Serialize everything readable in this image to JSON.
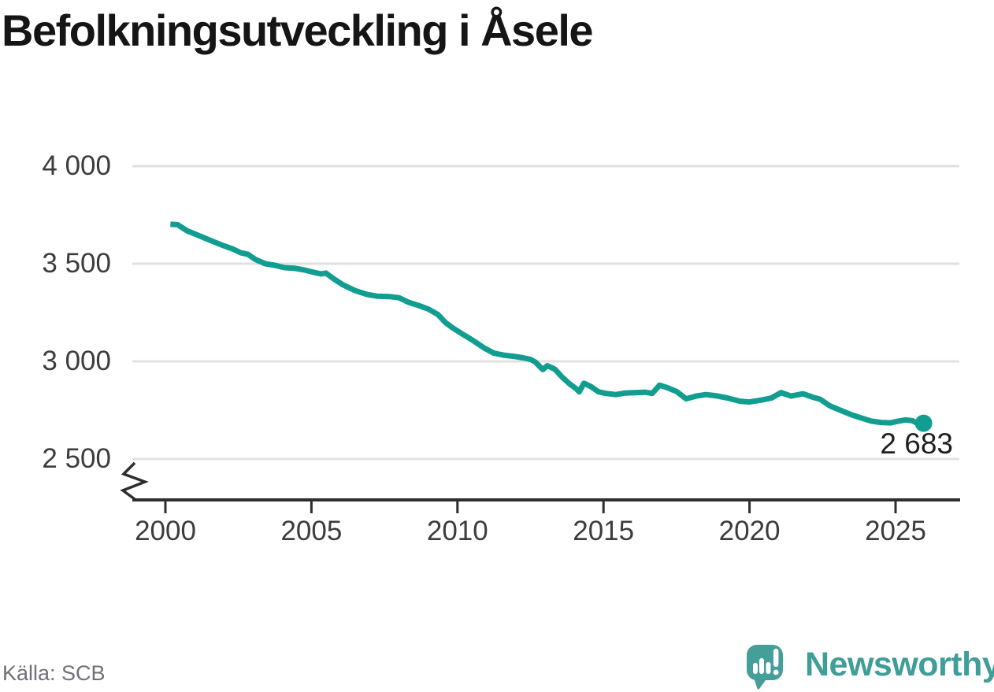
{
  "header": {
    "title": "Befolkningsutveckling i Åsele"
  },
  "chart_data": {
    "type": "line",
    "title": "Befolkningsutveckling i Åsele",
    "xlabel": "",
    "ylabel": "",
    "grid": "horizontal",
    "legend": "none",
    "axis_break": true,
    "x_ticks": [
      2000,
      2005,
      2010,
      2015,
      2020,
      2025
    ],
    "y_ticks": [
      {
        "value": 4000,
        "label": "4 000"
      },
      {
        "value": 3500,
        "label": "3 500"
      },
      {
        "value": 3000,
        "label": "3 000"
      },
      {
        "value": 2500,
        "label": "2 500"
      }
    ],
    "xlim": [
      1998.9,
      2027.2
    ],
    "ylim_display": [
      2500,
      4000
    ],
    "latest_point": {
      "x": 2025.96,
      "value": 2683,
      "label": "2 683"
    },
    "series": [
      {
        "name": "Befolkning i Åsele",
        "points": [
          [
            2000.17,
            3702
          ],
          [
            2000.42,
            3700
          ],
          [
            2000.75,
            3668
          ],
          [
            2001.08,
            3648
          ],
          [
            2001.5,
            3622
          ],
          [
            2002.0,
            3592
          ],
          [
            2002.33,
            3574
          ],
          [
            2002.58,
            3556
          ],
          [
            2002.83,
            3548
          ],
          [
            2003.08,
            3522
          ],
          [
            2003.42,
            3500
          ],
          [
            2003.75,
            3492
          ],
          [
            2004.08,
            3480
          ],
          [
            2004.42,
            3477
          ],
          [
            2004.75,
            3468
          ],
          [
            2005.08,
            3456
          ],
          [
            2005.33,
            3448
          ],
          [
            2005.5,
            3452
          ],
          [
            2005.75,
            3424
          ],
          [
            2006.08,
            3392
          ],
          [
            2006.5,
            3362
          ],
          [
            2006.92,
            3342
          ],
          [
            2007.25,
            3334
          ],
          [
            2007.67,
            3332
          ],
          [
            2008.0,
            3326
          ],
          [
            2008.33,
            3302
          ],
          [
            2008.67,
            3286
          ],
          [
            2009.0,
            3268
          ],
          [
            2009.33,
            3240
          ],
          [
            2009.58,
            3200
          ],
          [
            2009.83,
            3172
          ],
          [
            2010.17,
            3140
          ],
          [
            2010.5,
            3110
          ],
          [
            2010.92,
            3068
          ],
          [
            2011.25,
            3042
          ],
          [
            2011.58,
            3032
          ],
          [
            2011.92,
            3026
          ],
          [
            2012.25,
            3018
          ],
          [
            2012.5,
            3010
          ],
          [
            2012.67,
            2996
          ],
          [
            2012.92,
            2958
          ],
          [
            2013.08,
            2978
          ],
          [
            2013.33,
            2960
          ],
          [
            2013.58,
            2920
          ],
          [
            2013.83,
            2886
          ],
          [
            2014.08,
            2858
          ],
          [
            2014.17,
            2844
          ],
          [
            2014.33,
            2888
          ],
          [
            2014.58,
            2870
          ],
          [
            2014.83,
            2844
          ],
          [
            2015.08,
            2836
          ],
          [
            2015.42,
            2830
          ],
          [
            2015.75,
            2838
          ],
          [
            2016.08,
            2840
          ],
          [
            2016.42,
            2842
          ],
          [
            2016.67,
            2836
          ],
          [
            2016.92,
            2878
          ],
          [
            2017.17,
            2866
          ],
          [
            2017.5,
            2846
          ],
          [
            2017.83,
            2808
          ],
          [
            2018.17,
            2822
          ],
          [
            2018.5,
            2830
          ],
          [
            2018.83,
            2824
          ],
          [
            2019.25,
            2812
          ],
          [
            2019.67,
            2796
          ],
          [
            2020.0,
            2792
          ],
          [
            2020.42,
            2802
          ],
          [
            2020.75,
            2812
          ],
          [
            2021.08,
            2840
          ],
          [
            2021.42,
            2822
          ],
          [
            2021.83,
            2834
          ],
          [
            2022.17,
            2816
          ],
          [
            2022.42,
            2806
          ],
          [
            2022.75,
            2772
          ],
          [
            2023.17,
            2746
          ],
          [
            2023.5,
            2726
          ],
          [
            2023.83,
            2710
          ],
          [
            2024.17,
            2694
          ],
          [
            2024.5,
            2687
          ],
          [
            2024.83,
            2685
          ],
          [
            2025.08,
            2693
          ],
          [
            2025.33,
            2700
          ],
          [
            2025.58,
            2696
          ],
          [
            2025.83,
            2676
          ],
          [
            2025.96,
            2683
          ]
        ]
      }
    ]
  },
  "colors": {
    "line": "#119e91",
    "grid": "#e1e1e1",
    "axis": "#2e2e2e",
    "tick_text": "#3c3c3c",
    "title_text": "#151515",
    "brand_teal": "#469e98"
  },
  "footer": {
    "source": "Källa: SCB",
    "brand": "Newsworthy"
  },
  "icons": {
    "brand_icon": "newsworthy-speech-bubble-bar-chart-icon"
  }
}
